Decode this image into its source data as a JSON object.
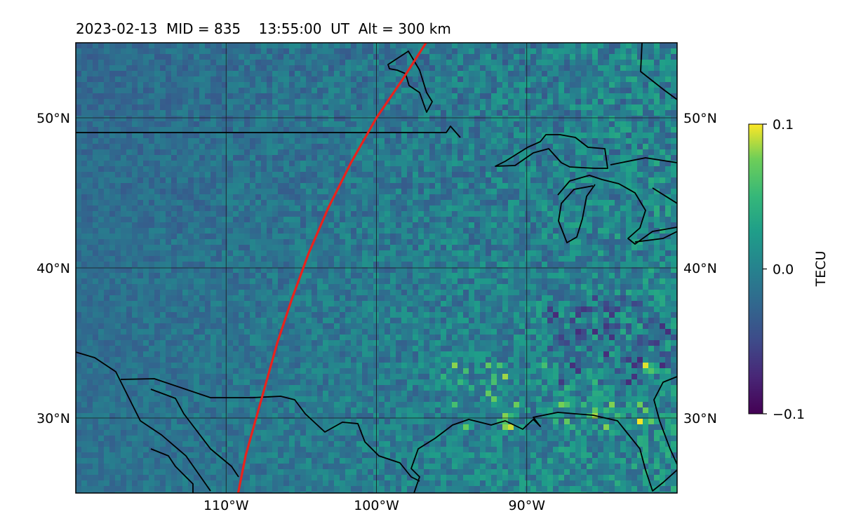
{
  "title": {
    "date": "2023-02-13",
    "mid": "MID = 835",
    "time": "13:55:00  UT",
    "alt": "Alt = 300 km"
  },
  "map": {
    "lon_range": [
      -120,
      -80
    ],
    "lat_range": [
      25,
      55
    ],
    "lat_ticks": [
      {
        "value": 30,
        "label": "30°N"
      },
      {
        "value": 40,
        "label": "40°N"
      },
      {
        "value": 50,
        "label": "50°N"
      }
    ],
    "lon_ticks": [
      {
        "value": -110,
        "label": "110°W"
      },
      {
        "value": -100,
        "label": "100°W"
      },
      {
        "value": -90,
        "label": "90°W"
      }
    ],
    "gridlines": true,
    "field": "TEC perturbation",
    "colormap": "viridis",
    "track_color": "#e8231d",
    "coast_color": "#000000",
    "track": [
      [
        -109.2,
        25
      ],
      [
        -108.7,
        27.5
      ],
      [
        -108.0,
        30
      ],
      [
        -107.3,
        32.5
      ],
      [
        -106.6,
        35
      ],
      [
        -105.6,
        38
      ],
      [
        -104.5,
        41
      ],
      [
        -103.2,
        44
      ],
      [
        -101.7,
        47
      ],
      [
        -100.0,
        50
      ],
      [
        -98.3,
        52.5
      ],
      [
        -96.7,
        55
      ]
    ]
  },
  "colorbar": {
    "label": "TECU",
    "min": -0.1,
    "max": 0.1,
    "ticks": [
      {
        "value": 0.1,
        "label": "0.1"
      },
      {
        "value": 0.0,
        "label": "0.0"
      },
      {
        "value": -0.1,
        "label": "−0.1"
      }
    ]
  }
}
